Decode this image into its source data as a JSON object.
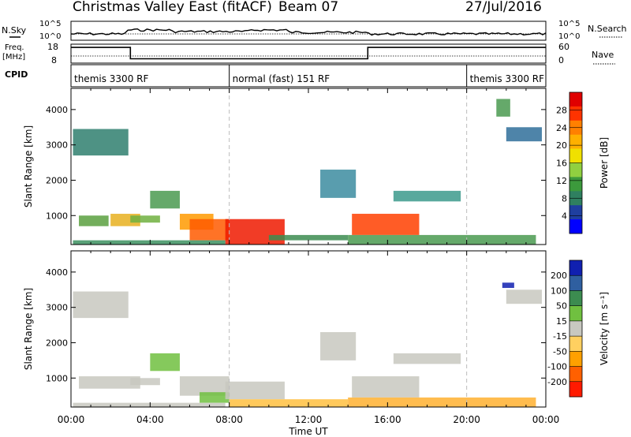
{
  "header": {
    "title": "Christmas Valley East (fitACF)",
    "beam": "Beam 07",
    "date": "27/Jul/2016"
  },
  "top_panels": {
    "nsky_label": "N.Sky",
    "nsky_ticks": [
      "10^5",
      "10^0"
    ],
    "nsearch_label": "N.Search",
    "nsearch_ticks": [
      "10^5",
      "10^0"
    ],
    "freq_label_1": "Freq.",
    "freq_label_2": "[MHz]",
    "freq_ticks": [
      "18",
      "8"
    ],
    "nave_label": "Nave",
    "nave_ticks": [
      "60",
      "0"
    ],
    "cpid_label": "CPID",
    "cpid_segments": [
      {
        "label": "themis 3300 RF",
        "start_hour": 0,
        "end_hour": 8
      },
      {
        "label": "normal (fast) 151 RF",
        "start_hour": 8,
        "end_hour": 20
      },
      {
        "label": "themis 3300 RF",
        "start_hour": 20,
        "end_hour": 24
      }
    ]
  },
  "chart_data": [
    {
      "type": "heatmap",
      "panel": "power",
      "ylabel": "Slant Range [km]",
      "xlabel": "",
      "x_range_hours": [
        0,
        24
      ],
      "y_range_km": [
        180,
        4600
      ],
      "y_ticks": [
        1000,
        2000,
        3000,
        4000
      ],
      "colorbar_label": "Power [dB]",
      "colorbar_ticks": [
        "28",
        "24",
        "20",
        "16",
        "12",
        "8",
        "4"
      ],
      "colorbar_colors": [
        "#e00000",
        "#ff3300",
        "#ff8000",
        "#ffb000",
        "#f0e000",
        "#90d040",
        "#3c9a3c",
        "#2f8060",
        "#1f3fa0",
        "#0000ff"
      ],
      "regions": [
        {
          "h0": 0.1,
          "h1": 2.9,
          "r0": 2700,
          "r1": 3450,
          "color": "#2f7f6f"
        },
        {
          "h0": 0.4,
          "h1": 1.9,
          "r0": 700,
          "r1": 1000,
          "color": "#5aa040"
        },
        {
          "h0": 2.0,
          "h1": 3.5,
          "r0": 700,
          "r1": 1050,
          "color": "#e8b020"
        },
        {
          "h0": 3.0,
          "h1": 4.5,
          "r0": 800,
          "r1": 1000,
          "color": "#70b040"
        },
        {
          "h0": 4.0,
          "h1": 5.5,
          "r0": 1200,
          "r1": 1700,
          "color": "#4a9a50"
        },
        {
          "h0": 5.5,
          "h1": 7.2,
          "r0": 600,
          "r1": 1050,
          "color": "#ff9a00"
        },
        {
          "h0": 6.0,
          "h1": 8.0,
          "r0": 300,
          "r1": 900,
          "color": "#ff5a00"
        },
        {
          "h0": 7.8,
          "h1": 10.8,
          "r0": 180,
          "r1": 900,
          "color": "#ee1a00"
        },
        {
          "h0": 10.0,
          "h1": 14.0,
          "r0": 300,
          "r1": 450,
          "color": "#3c8c50"
        },
        {
          "h0": 12.6,
          "h1": 14.4,
          "r0": 1500,
          "r1": 2300,
          "color": "#3c8ca0"
        },
        {
          "h0": 14.2,
          "h1": 17.6,
          "r0": 450,
          "r1": 1050,
          "color": "#ff4000"
        },
        {
          "h0": 16.3,
          "h1": 19.7,
          "r0": 1400,
          "r1": 1700,
          "color": "#3c9a8c"
        },
        {
          "h0": 0.1,
          "h1": 7.8,
          "r0": 180,
          "r1": 300,
          "color": "#3c9060"
        },
        {
          "h0": 14.0,
          "h1": 23.5,
          "r0": 180,
          "r1": 450,
          "color": "#4a9a50"
        },
        {
          "h0": 22.0,
          "h1": 23.8,
          "r0": 3100,
          "r1": 3500,
          "color": "#2f6f9a"
        },
        {
          "h0": 21.5,
          "h1": 22.2,
          "r0": 3800,
          "r1": 4300,
          "color": "#4a9a50"
        }
      ]
    },
    {
      "type": "heatmap",
      "panel": "velocity",
      "ylabel": "Slant Range [km]",
      "xlabel": "Time UT",
      "x_range_hours": [
        0,
        24
      ],
      "y_range_km": [
        180,
        4600
      ],
      "y_ticks": [
        1000,
        2000,
        3000,
        4000
      ],
      "x_ticks": [
        "00:00",
        "04:00",
        "08:00",
        "12:00",
        "16:00",
        "20:00",
        "00:00"
      ],
      "colorbar_label": "Velocity [m s⁻¹]",
      "colorbar_ticks": [
        "200",
        "100",
        "50",
        "15",
        "-15",
        "-50",
        "-100",
        "-200"
      ],
      "colorbar_colors": [
        "#1020b0",
        "#2f5fa0",
        "#3c8c50",
        "#70c040",
        "#c8c8c0",
        "#ffd060",
        "#ffa000",
        "#ff6000",
        "#ff1a00"
      ],
      "regions": [
        {
          "h0": 0.1,
          "h1": 2.9,
          "r0": 2700,
          "r1": 3450,
          "color": "#c8c8c0"
        },
        {
          "h0": 0.4,
          "h1": 3.5,
          "r0": 700,
          "r1": 1050,
          "color": "#c8c8c0"
        },
        {
          "h0": 3.0,
          "h1": 4.5,
          "r0": 800,
          "r1": 1000,
          "color": "#c8c8c0"
        },
        {
          "h0": 4.0,
          "h1": 5.5,
          "r0": 1200,
          "r1": 1700,
          "color": "#70c040"
        },
        {
          "h0": 5.5,
          "h1": 8.0,
          "r0": 500,
          "r1": 1050,
          "color": "#c8c8c0"
        },
        {
          "h0": 6.5,
          "h1": 8.0,
          "r0": 300,
          "r1": 600,
          "color": "#70c040"
        },
        {
          "h0": 7.8,
          "h1": 10.8,
          "r0": 400,
          "r1": 900,
          "color": "#c8c8c0"
        },
        {
          "h0": 8.0,
          "h1": 14.0,
          "r0": 180,
          "r1": 400,
          "color": "#ffc040"
        },
        {
          "h0": 12.6,
          "h1": 14.4,
          "r0": 1500,
          "r1": 2300,
          "color": "#c8c8c0"
        },
        {
          "h0": 14.2,
          "h1": 17.6,
          "r0": 450,
          "r1": 1050,
          "color": "#c8c8c0"
        },
        {
          "h0": 16.3,
          "h1": 19.7,
          "r0": 1400,
          "r1": 1700,
          "color": "#c8c8c0"
        },
        {
          "h0": 14.0,
          "h1": 23.5,
          "r0": 180,
          "r1": 450,
          "color": "#ffb030"
        },
        {
          "h0": 0.1,
          "h1": 7.8,
          "r0": 180,
          "r1": 300,
          "color": "#c8c8c0"
        },
        {
          "h0": 22.0,
          "h1": 23.8,
          "r0": 3100,
          "r1": 3500,
          "color": "#c8c8c0"
        },
        {
          "h0": 21.8,
          "h1": 22.4,
          "r0": 3550,
          "r1": 3700,
          "color": "#1020b0"
        }
      ]
    }
  ],
  "freq_series": {
    "x_hours": [
      0,
      3.0,
      3.0,
      15.0,
      15.0,
      24
    ],
    "mhz": [
      16.3,
      16.3,
      10.3,
      10.3,
      16.3,
      16.3
    ]
  }
}
